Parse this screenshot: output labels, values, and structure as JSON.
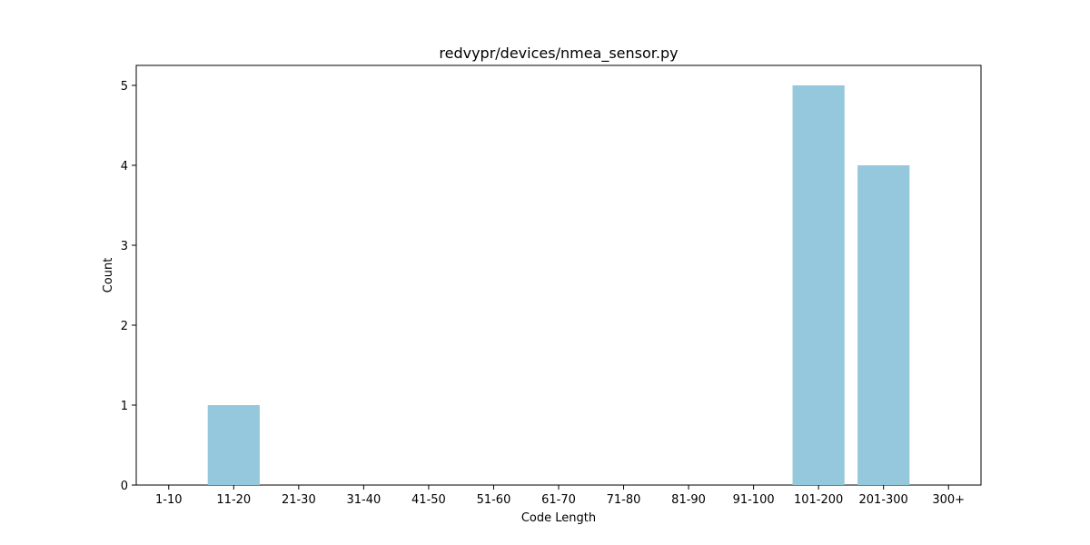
{
  "chart_data": {
    "type": "bar",
    "title": "redvypr/devices/nmea_sensor.py",
    "xlabel": "Code Length",
    "ylabel": "Count",
    "categories": [
      "1-10",
      "11-20",
      "21-30",
      "31-40",
      "41-50",
      "51-60",
      "61-70",
      "71-80",
      "81-90",
      "91-100",
      "101-200",
      "201-300",
      "300+"
    ],
    "values": [
      0,
      1,
      0,
      0,
      0,
      0,
      0,
      0,
      0,
      0,
      5,
      4,
      0
    ],
    "ylim": [
      0,
      5.25
    ],
    "yticks": [
      "0",
      "1",
      "2",
      "3",
      "4",
      "5"
    ],
    "grid": false,
    "bar_color": "#95c8dc"
  }
}
